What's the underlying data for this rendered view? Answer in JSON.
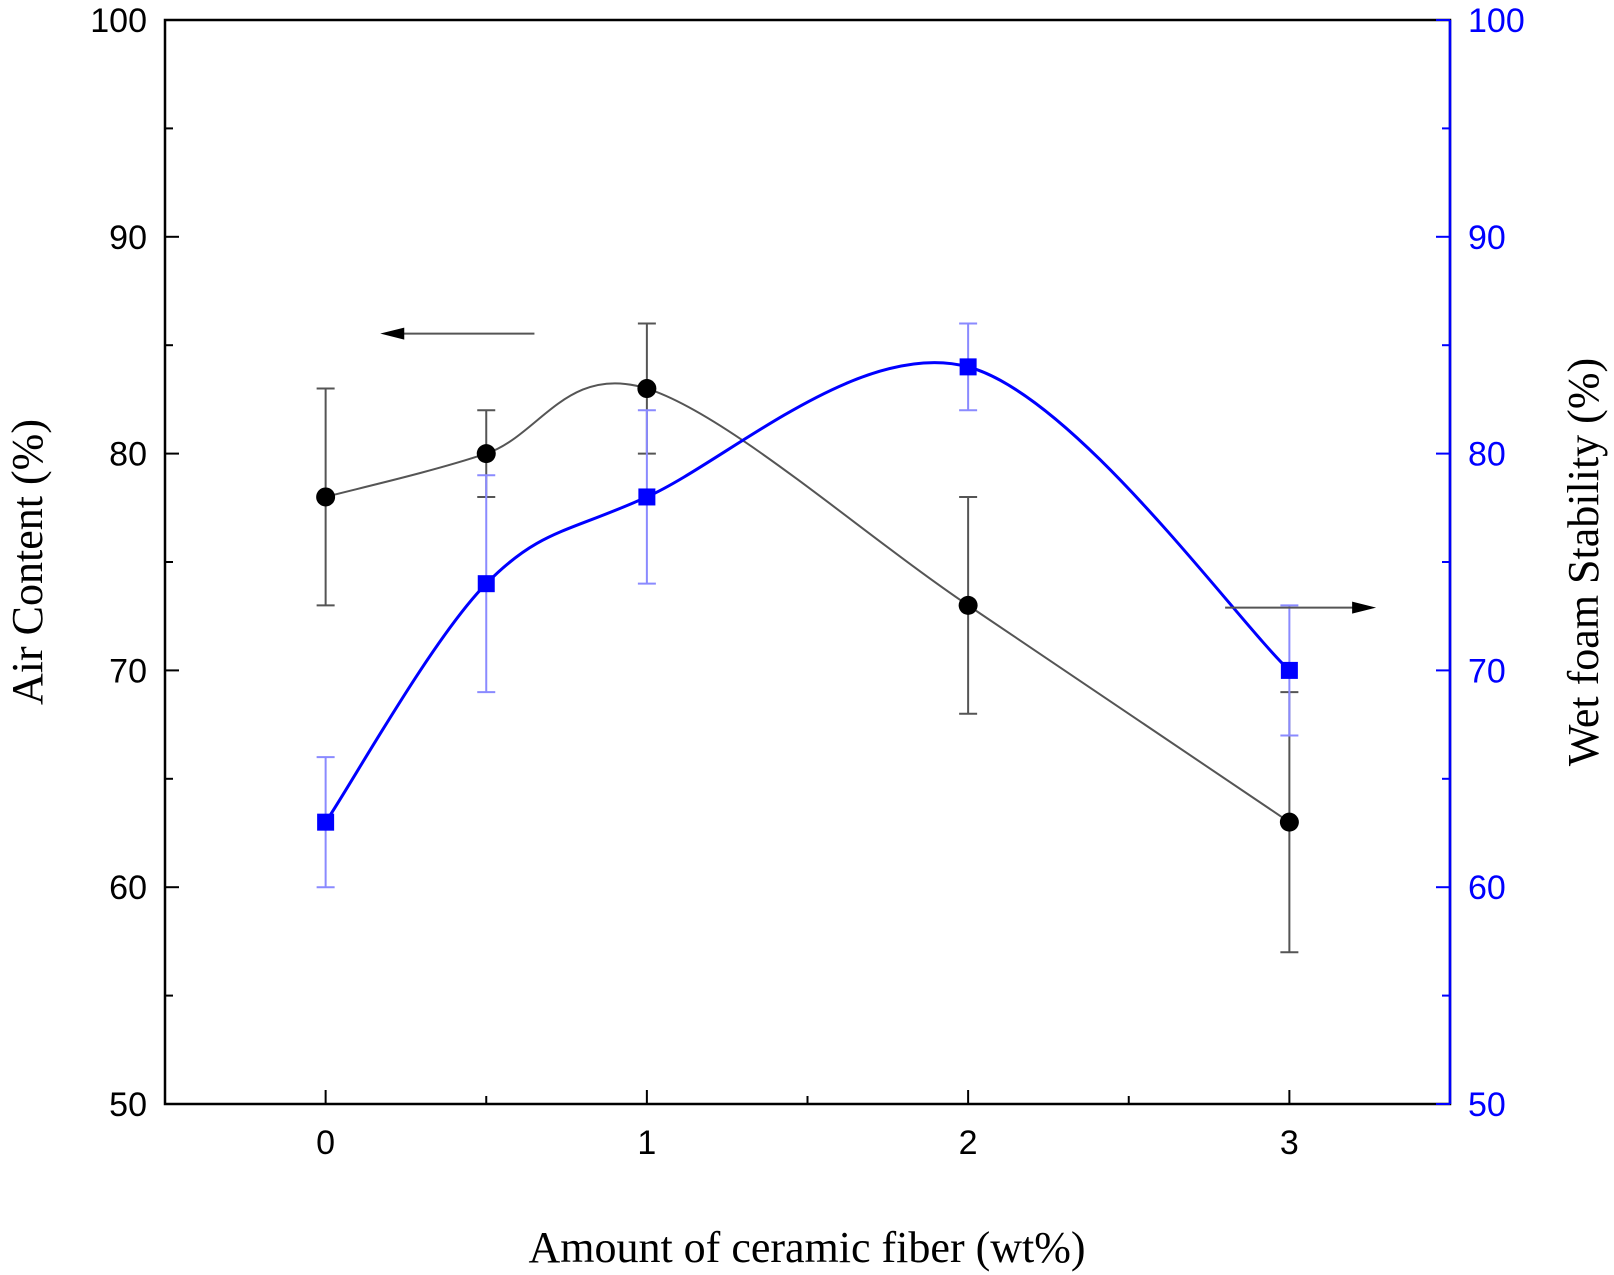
{
  "chart_data": {
    "type": "line",
    "xlabel": "Amount of ceramic fiber (wt%)",
    "ylabel_left": "Air Content (%)",
    "ylabel_right": "Wet foam Stability (%)",
    "xlim": [
      -0.5,
      3.5
    ],
    "ylim_left": [
      50,
      100
    ],
    "ylim_right": [
      50,
      100
    ],
    "x_ticks": [
      0,
      1,
      2,
      3
    ],
    "y_ticks_left": [
      50,
      60,
      70,
      80,
      90,
      100
    ],
    "y_ticks_right": [
      50,
      60,
      70,
      80,
      90,
      100
    ],
    "grid": false,
    "series": [
      {
        "axis": "left",
        "color": "#000000",
        "marker": "circle",
        "x": [
          0,
          0.5,
          1,
          2,
          3
        ],
        "values": [
          78,
          80,
          83,
          73,
          63
        ],
        "error": [
          5,
          2,
          3,
          5,
          6
        ]
      },
      {
        "axis": "right",
        "color": "#0000ff",
        "marker": "square",
        "x": [
          0,
          0.5,
          1,
          2,
          3
        ],
        "values": [
          63,
          74,
          78,
          84,
          70
        ],
        "error": [
          3,
          5,
          4,
          2,
          3
        ]
      }
    ],
    "annotations": [
      {
        "type": "arrow",
        "direction": "left",
        "target_axis": "left"
      },
      {
        "type": "arrow",
        "direction": "right",
        "target_axis": "right"
      }
    ]
  }
}
